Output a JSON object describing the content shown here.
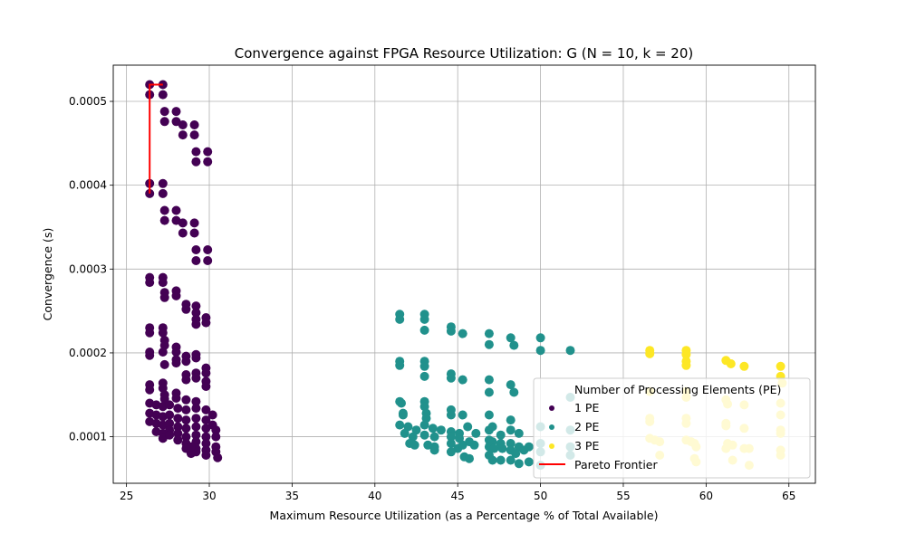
{
  "chart_data": {
    "type": "scatter",
    "title": "Convergence against FPGA Resource Utilization: G (N = 10, k = 20)",
    "xlabel": "Maximum Resource Utilization (as a Percentage % of Total Available)",
    "ylabel": "Convergence (s)",
    "xlim": [
      24.2,
      66.6
    ],
    "ylim": [
      4.45e-05,
      0.0005432
    ],
    "xticks": [
      25,
      30,
      35,
      40,
      45,
      50,
      55,
      60,
      65
    ],
    "xtick_labels": [
      "25",
      "30",
      "35",
      "40",
      "45",
      "50",
      "55",
      "60",
      "65"
    ],
    "yticks": [
      0.0001,
      0.0002,
      0.0003,
      0.0004,
      0.0005
    ],
    "ytick_labels": [
      "0.0001",
      "0.0002",
      "0.0003",
      "0.0004",
      "0.0005"
    ],
    "grid": true,
    "legend": {
      "title": "Number of Processing Elements (PE)",
      "placement": "lower right",
      "entries": [
        "1 PE",
        "2 PE",
        "3 PE",
        "Pareto Frontier"
      ]
    },
    "colors": {
      "1 PE": "#440154",
      "2 PE": "#21918c",
      "3 PE": "#fde725",
      "Pareto Frontier": "#ff0000"
    },
    "series": [
      {
        "name": "1 PE",
        "points": [
          [
            26.4,
            0.00052
          ],
          [
            27.2,
            0.00052
          ],
          [
            26.4,
            0.000508
          ],
          [
            27.2,
            0.000508
          ],
          [
            27.3,
            0.000488
          ],
          [
            28.0,
            0.000488
          ],
          [
            27.3,
            0.000476
          ],
          [
            28.0,
            0.000476
          ],
          [
            28.4,
            0.000472
          ],
          [
            29.1,
            0.000472
          ],
          [
            28.4,
            0.00046
          ],
          [
            29.1,
            0.00046
          ],
          [
            29.2,
            0.00044
          ],
          [
            29.9,
            0.00044
          ],
          [
            29.2,
            0.000428
          ],
          [
            29.9,
            0.000428
          ],
          [
            26.4,
            0.000402
          ],
          [
            27.2,
            0.000402
          ],
          [
            26.4,
            0.00039
          ],
          [
            27.2,
            0.00039
          ],
          [
            27.3,
            0.00037
          ],
          [
            28.0,
            0.00037
          ],
          [
            27.3,
            0.000358
          ],
          [
            28.0,
            0.000358
          ],
          [
            28.4,
            0.000355
          ],
          [
            29.1,
            0.000355
          ],
          [
            28.4,
            0.000343
          ],
          [
            29.1,
            0.000343
          ],
          [
            29.2,
            0.000323
          ],
          [
            29.9,
            0.000323
          ],
          [
            29.2,
            0.00031
          ],
          [
            29.9,
            0.00031
          ],
          [
            26.4,
            0.00029
          ],
          [
            27.2,
            0.00029
          ],
          [
            26.4,
            0.000284
          ],
          [
            27.2,
            0.000284
          ],
          [
            28.0,
            0.000274
          ],
          [
            27.3,
            0.000272
          ],
          [
            28.0,
            0.000268
          ],
          [
            27.3,
            0.000266
          ],
          [
            28.6,
            0.000258
          ],
          [
            29.2,
            0.000256
          ],
          [
            28.6,
            0.000252
          ],
          [
            29.2,
            0.000248
          ],
          [
            29.8,
            0.000242
          ],
          [
            29.2,
            0.00024
          ],
          [
            29.8,
            0.000236
          ],
          [
            29.2,
            0.000234
          ],
          [
            26.4,
            0.00023
          ],
          [
            27.2,
            0.00023
          ],
          [
            26.4,
            0.000224
          ],
          [
            27.2,
            0.000224
          ],
          [
            27.3,
            0.000215
          ],
          [
            27.3,
            0.000209
          ],
          [
            28.0,
            0.000207
          ],
          [
            26.4,
            0.000201
          ],
          [
            27.2,
            0.000201
          ],
          [
            26.4,
            0.000197
          ],
          [
            28.0,
            0.000201
          ],
          [
            29.2,
            0.000198
          ],
          [
            28.6,
            0.000196
          ],
          [
            29.2,
            0.000194
          ],
          [
            28.0,
            0.000192
          ],
          [
            28.0,
            0.000188
          ],
          [
            28.6,
            0.00019
          ],
          [
            27.3,
            0.000186
          ],
          [
            29.8,
            0.000182
          ],
          [
            29.8,
            0.000176
          ],
          [
            29.2,
            0.000176
          ],
          [
            28.6,
            0.000174
          ],
          [
            29.2,
            0.00017
          ],
          [
            28.6,
            0.000168
          ],
          [
            29.8,
            0.000166
          ],
          [
            29.8,
            0.00016
          ],
          [
            27.2,
            0.000164
          ],
          [
            26.4,
            0.000162
          ],
          [
            27.2,
            0.000158
          ],
          [
            26.4,
            0.000156
          ],
          [
            27.3,
            0.00015
          ],
          [
            28.0,
            0.000152
          ],
          [
            27.3,
            0.000145
          ],
          [
            28.0,
            0.000146
          ],
          [
            28.6,
            0.000144
          ],
          [
            29.2,
            0.000142
          ],
          [
            26.4,
            0.00014
          ],
          [
            26.8,
            0.000138
          ],
          [
            27.2,
            0.000136
          ],
          [
            27.6,
            0.000138
          ],
          [
            28.1,
            0.000134
          ],
          [
            28.6,
            0.000132
          ],
          [
            29.2,
            0.000134
          ],
          [
            29.8,
            0.000132
          ],
          [
            30.2,
            0.000126
          ],
          [
            26.4,
            0.000128
          ],
          [
            26.8,
            0.000126
          ],
          [
            27.2,
            0.000124
          ],
          [
            27.6,
            0.000126
          ],
          [
            28.1,
            0.000122
          ],
          [
            28.6,
            0.00012
          ],
          [
            29.2,
            0.000122
          ],
          [
            29.8,
            0.00012
          ],
          [
            30.2,
            0.000114
          ],
          [
            26.4,
            0.000118
          ],
          [
            26.8,
            0.000116
          ],
          [
            27.2,
            0.000114
          ],
          [
            27.6,
            0.000116
          ],
          [
            28.1,
            0.000112
          ],
          [
            28.6,
            0.00011
          ],
          [
            29.2,
            0.000112
          ],
          [
            29.8,
            0.00011
          ],
          [
            30.4,
            0.000108
          ],
          [
            26.8,
            0.000106
          ],
          [
            27.2,
            0.000104
          ],
          [
            27.6,
            0.000108
          ],
          [
            28.1,
            0.000104
          ],
          [
            28.6,
            0.0001
          ],
          [
            29.2,
            0.000102
          ],
          [
            29.8,
            0.0001
          ],
          [
            30.4,
            0.0001
          ],
          [
            27.2,
            9.8e-05
          ],
          [
            27.6,
            0.000102
          ],
          [
            28.1,
            9.6e-05
          ],
          [
            28.6,
            9.2e-05
          ],
          [
            29.2,
            9.4e-05
          ],
          [
            29.8,
            9.2e-05
          ],
          [
            30.4,
            8.8e-05
          ],
          [
            28.6,
            8.6e-05
          ],
          [
            29.2,
            8.2e-05
          ],
          [
            29.8,
            8.4e-05
          ],
          [
            30.4,
            8.2e-05
          ],
          [
            28.9,
            8e-05
          ],
          [
            29.8,
            7.8e-05
          ],
          [
            30.5,
            7.5e-05
          ],
          [
            29.2,
            8.6e-05
          ],
          [
            28.9,
            8.8e-05
          ]
        ]
      },
      {
        "name": "2 PE",
        "points": [
          [
            41.5,
            0.000246
          ],
          [
            43.0,
            0.000246
          ],
          [
            41.5,
            0.00024
          ],
          [
            43.0,
            0.00024
          ],
          [
            44.6,
            0.000231
          ],
          [
            44.6,
            0.000226
          ],
          [
            45.3,
            0.000223
          ],
          [
            46.9,
            0.000223
          ],
          [
            43.0,
            0.000227
          ],
          [
            48.2,
            0.000218
          ],
          [
            50.0,
            0.000218
          ],
          [
            46.9,
            0.00021
          ],
          [
            48.4,
            0.000209
          ],
          [
            50.0,
            0.000203
          ],
          [
            51.8,
            0.000203
          ],
          [
            41.5,
            0.00019
          ],
          [
            43.0,
            0.00019
          ],
          [
            41.5,
            0.000185
          ],
          [
            43.0,
            0.000184
          ],
          [
            44.6,
            0.000175
          ],
          [
            44.6,
            0.00017
          ],
          [
            45.3,
            0.000168
          ],
          [
            46.9,
            0.000168
          ],
          [
            43.0,
            0.000172
          ],
          [
            48.2,
            0.000162
          ],
          [
            46.9,
            0.000153
          ],
          [
            48.4,
            0.000153
          ],
          [
            51.8,
            0.000147
          ],
          [
            41.5,
            0.000142
          ],
          [
            43.0,
            0.000142
          ],
          [
            41.6,
            0.00014
          ],
          [
            43.0,
            0.000136
          ],
          [
            44.6,
            0.000132
          ],
          [
            41.7,
            0.000128
          ],
          [
            43.1,
            0.000128
          ],
          [
            41.7,
            0.000126
          ],
          [
            44.6,
            0.000126
          ],
          [
            45.3,
            0.000126
          ],
          [
            46.9,
            0.000126
          ],
          [
            43.1,
            0.000122
          ],
          [
            48.2,
            0.00012
          ],
          [
            41.5,
            0.000114
          ],
          [
            42.0,
            0.000112
          ],
          [
            42.5,
            0.000108
          ],
          [
            43.0,
            0.000114
          ],
          [
            43.5,
            0.00011
          ],
          [
            44.0,
            0.000108
          ],
          [
            44.6,
            0.000106
          ],
          [
            45.1,
            0.000104
          ],
          [
            45.6,
            0.000112
          ],
          [
            46.1,
            0.000104
          ],
          [
            46.9,
            0.000108
          ],
          [
            47.1,
            0.000112
          ],
          [
            47.6,
            0.000102
          ],
          [
            48.2,
            0.000108
          ],
          [
            48.7,
            0.000104
          ],
          [
            50.0,
            0.000112
          ],
          [
            51.8,
            0.000108
          ],
          [
            41.8,
            0.000104
          ],
          [
            42.3,
            0.0001
          ],
          [
            43.0,
            0.000102
          ],
          [
            43.6,
            0.0001
          ],
          [
            44.6,
            0.0001
          ],
          [
            45.1,
            9.8e-05
          ],
          [
            45.7,
            9.4e-05
          ],
          [
            46.9,
            9.6e-05
          ],
          [
            47.1,
            9.4e-05
          ],
          [
            47.6,
            9.2e-05
          ],
          [
            48.2,
            9.2e-05
          ],
          [
            48.7,
            8.8e-05
          ],
          [
            49.3,
            8.8e-05
          ],
          [
            50.0,
            9.2e-05
          ],
          [
            51.8,
            8.8e-05
          ],
          [
            42.1,
            9.2e-05
          ],
          [
            42.4,
            9e-05
          ],
          [
            43.2,
            9e-05
          ],
          [
            43.6,
            8.8e-05
          ],
          [
            44.6,
            9.2e-05
          ],
          [
            45.0,
            8.6e-05
          ],
          [
            45.3,
            9e-05
          ],
          [
            46.0,
            9e-05
          ],
          [
            46.9,
            8.8e-05
          ],
          [
            47.2,
            8.6e-05
          ],
          [
            47.7,
            8.6e-05
          ],
          [
            48.2,
            8.4e-05
          ],
          [
            48.5,
            8e-05
          ],
          [
            49.0,
            8.4e-05
          ],
          [
            50.0,
            8.2e-05
          ],
          [
            51.8,
            7.8e-05
          ],
          [
            43.6,
            8.4e-05
          ],
          [
            44.6,
            8.2e-05
          ],
          [
            45.4,
            7.6e-05
          ],
          [
            45.7,
            7.4e-05
          ],
          [
            46.9,
            7.8e-05
          ],
          [
            47.1,
            7.2e-05
          ],
          [
            47.6,
            7.2e-05
          ],
          [
            48.2,
            7.2e-05
          ],
          [
            48.7,
            6.8e-05
          ],
          [
            49.3,
            7e-05
          ],
          [
            50.0,
            6.6e-05
          ]
        ]
      },
      {
        "name": "3 PE",
        "points": [
          [
            56.6,
            0.000203
          ],
          [
            56.6,
            0.000199
          ],
          [
            58.8,
            0.000203
          ],
          [
            58.8,
            0.000198
          ],
          [
            58.8,
            0.00019
          ],
          [
            58.8,
            0.000185
          ],
          [
            61.2,
            0.000191
          ],
          [
            61.5,
            0.000187
          ],
          [
            62.3,
            0.000184
          ],
          [
            64.5,
            0.000184
          ],
          [
            64.5,
            0.000172
          ],
          [
            64.6,
            0.000164
          ],
          [
            56.6,
            0.000154
          ],
          [
            58.8,
            0.000154
          ],
          [
            58.8,
            0.000147
          ],
          [
            61.2,
            0.000144
          ],
          [
            61.3,
            0.000139
          ],
          [
            62.3,
            0.000138
          ],
          [
            64.5,
            0.00014
          ],
          [
            64.5,
            0.000126
          ],
          [
            56.6,
            0.000122
          ],
          [
            56.6,
            0.000118
          ],
          [
            58.8,
            0.000122
          ],
          [
            58.8,
            0.000116
          ],
          [
            61.2,
            0.000116
          ],
          [
            61.2,
            0.000113
          ],
          [
            62.3,
            0.00011
          ],
          [
            64.5,
            0.000108
          ],
          [
            64.5,
            0.000104
          ],
          [
            56.6,
            9.8e-05
          ],
          [
            56.9,
            9.6e-05
          ],
          [
            57.2,
            9.4e-05
          ],
          [
            58.8,
            9.6e-05
          ],
          [
            59.1,
            9.4e-05
          ],
          [
            59.3,
            9.2e-05
          ],
          [
            59.4,
            8.8e-05
          ],
          [
            61.3,
            9.2e-05
          ],
          [
            61.6,
            9e-05
          ],
          [
            61.2,
            8.6e-05
          ],
          [
            62.3,
            8.6e-05
          ],
          [
            62.6,
            8.6e-05
          ],
          [
            64.5,
            8.4e-05
          ],
          [
            64.5,
            7.8e-05
          ],
          [
            57.2,
            7.8e-05
          ],
          [
            59.3,
            7.4e-05
          ],
          [
            59.4,
            7e-05
          ],
          [
            61.6,
            7.2e-05
          ],
          [
            62.6,
            6.6e-05
          ]
        ]
      }
    ],
    "pareto_frontier": [
      [
        26.4,
        0.00052
      ],
      [
        27.2,
        0.00052
      ],
      [
        26.4,
        0.00052
      ],
      [
        26.4,
        0.00039
      ],
      [
        26.4,
        0.000402
      ]
    ]
  }
}
